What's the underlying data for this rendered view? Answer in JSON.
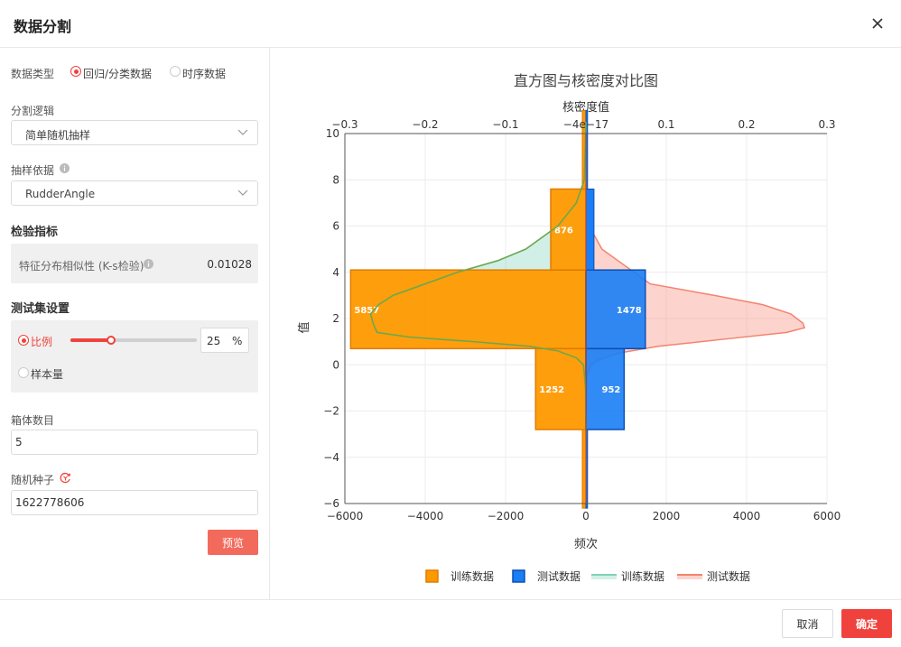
{
  "dialog": {
    "title": "数据分割"
  },
  "form": {
    "data_type": {
      "label": "数据类型",
      "options": [
        "回归/分类数据",
        "时序数据"
      ],
      "selected": "回归/分类数据"
    },
    "split_logic": {
      "label": "分割逻辑",
      "value": "简单随机抽样"
    },
    "sampling_basis": {
      "label": "抽样依据",
      "value": "RudderAngle"
    },
    "validation": {
      "title": "检验指标",
      "metric_label": "特征分布相似性 (K-s检验)",
      "metric_value": "0.01028"
    },
    "test_set": {
      "title": "测试集设置",
      "ratio_label": "比例",
      "ratio_value": 0.25,
      "ratio_input": "25",
      "unit": "%",
      "sample_label": "样本量",
      "selected": "比例"
    },
    "bins": {
      "label": "箱体数目",
      "value": "5"
    },
    "seed": {
      "label": "随机种子",
      "value": "1622778606"
    },
    "preview_button": "预览"
  },
  "footer": {
    "cancel": "取消",
    "confirm": "确定"
  },
  "chart_data": {
    "type": "bar",
    "title": "直方图与核密度对比图",
    "xlabel": "频次",
    "x2label": "核密度值",
    "ylabel": "值",
    "xlim": [
      -6000,
      6000
    ],
    "x2lim": [
      -0.3,
      0.3
    ],
    "ylim": [
      -6,
      10
    ],
    "xticks": [
      "−6000",
      "−4000",
      "−2000",
      "0",
      "2000",
      "4000",
      "6000"
    ],
    "x2ticks": [
      "−0.3",
      "−0.2",
      "−0.1",
      "−4e−17",
      "0.1",
      "0.2",
      "0.3"
    ],
    "yticks": [
      "10",
      "8",
      "6",
      "4",
      "2",
      "0",
      "−2",
      "−4",
      "−6"
    ],
    "grid": true,
    "legend_position": "bottom",
    "bins": [
      [
        -6.2,
        -2.8
      ],
      [
        -2.8,
        0.7
      ],
      [
        0.7,
        4.1
      ],
      [
        4.1,
        7.6
      ],
      [
        7.6,
        11
      ]
    ],
    "series": [
      {
        "name": "训练数据",
        "kind": "histogram",
        "side": "negative",
        "color": "#ff9900",
        "values": [
          0,
          1252,
          5857,
          876,
          0
        ]
      },
      {
        "name": "测试数据",
        "kind": "histogram",
        "side": "positive",
        "color": "#1a7ef5",
        "values": [
          0,
          952,
          1478,
          0,
          0
        ]
      },
      {
        "name": "训练数据",
        "kind": "density",
        "side": "negative",
        "color": "#7fd1b9"
      },
      {
        "name": "测试数据",
        "kind": "density",
        "side": "positive",
        "color": "#f4826e"
      }
    ]
  }
}
